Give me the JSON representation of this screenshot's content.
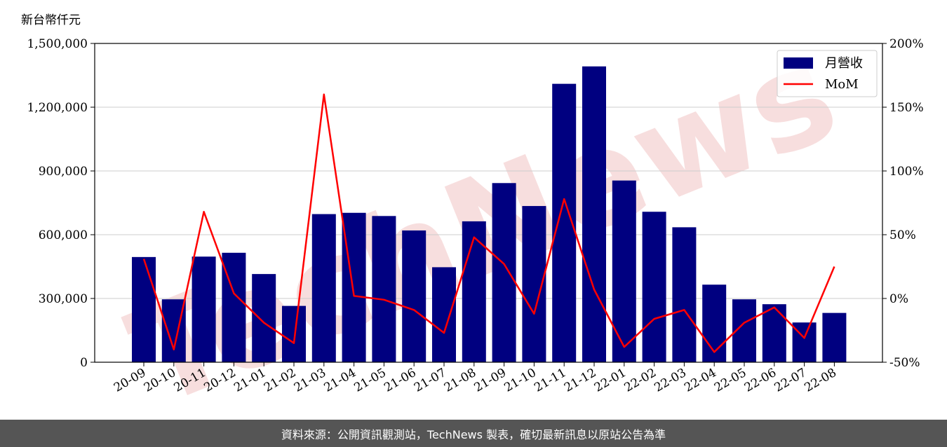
{
  "unit_label": "新台幣仟元",
  "watermark": "TechNews",
  "footer": "資料來源：公開資訊觀測站，TechNews 製表，確切最新訊息以原站公告為準",
  "colors": {
    "bar": "#000080",
    "line": "#ff0000",
    "watermark": "#f2c4c4",
    "footer_bg": "#555555"
  },
  "chart_data": {
    "type": "bar",
    "categories": [
      "20-09",
      "20-10",
      "20-11",
      "20-12",
      "21-01",
      "21-02",
      "21-03",
      "21-04",
      "21-05",
      "21-06",
      "21-07",
      "21-08",
      "21-09",
      "21-10",
      "21-11",
      "21-12",
      "22-01",
      "22-02",
      "22-03",
      "22-04",
      "22-05",
      "22-06",
      "22-07",
      "22-08"
    ],
    "series": [
      {
        "name": "月營收",
        "type": "bar",
        "axis": "left",
        "values": [
          495000,
          296000,
          497000,
          515000,
          415000,
          265000,
          697000,
          703000,
          688000,
          620000,
          447000,
          663000,
          843000,
          735000,
          1310000,
          1392000,
          855000,
          708000,
          635000,
          365000,
          296000,
          273000,
          187000,
          232000
        ]
      },
      {
        "name": "MoM",
        "type": "line",
        "axis": "right",
        "values": [
          31,
          -40,
          68,
          4,
          -19,
          -35,
          160,
          2,
          -1,
          -9,
          -27,
          48,
          27,
          -12,
          78,
          7,
          -38,
          -16,
          -9,
          -42,
          -19,
          -7,
          -31,
          25
        ]
      }
    ],
    "y_left": {
      "ylim": [
        0,
        1500000
      ],
      "ticks": [
        0,
        300000,
        600000,
        900000,
        1200000,
        1500000
      ],
      "tick_labels": [
        "0",
        "300,000",
        "600,000",
        "900,000",
        "1,200,000",
        "1,500,000"
      ]
    },
    "y_right": {
      "ylim": [
        -50,
        200
      ],
      "ticks": [
        -50,
        0,
        50,
        100,
        150,
        200
      ],
      "tick_labels": [
        "-50%",
        "0%",
        "50%",
        "100%",
        "150%",
        "200%"
      ]
    },
    "grid": true,
    "legend": "top-right"
  }
}
